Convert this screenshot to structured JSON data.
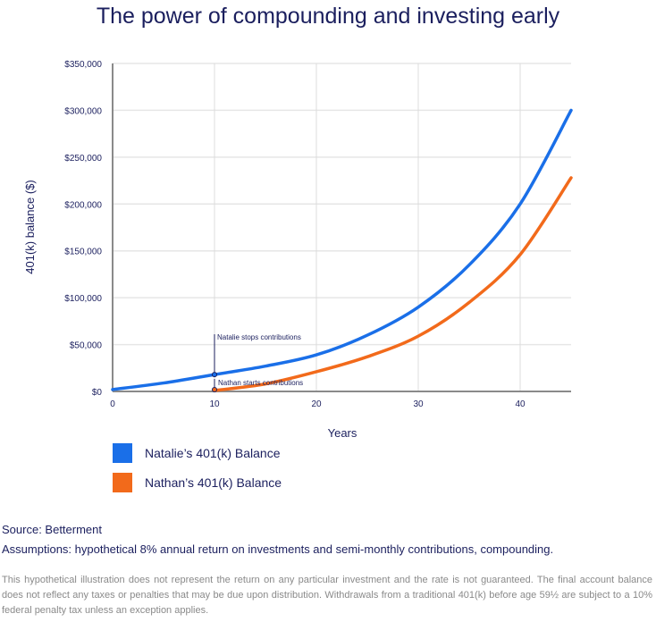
{
  "chart_data": {
    "type": "line",
    "title": "The power of compounding and investing early",
    "xlabel": "Years",
    "ylabel": "401(k) balance ($)",
    "xlim": [
      0,
      45
    ],
    "ylim": [
      0,
      350000
    ],
    "x_ticks": [
      "0",
      "10",
      "20",
      "30",
      "40"
    ],
    "y_ticks": [
      "$0",
      "$50,000",
      "$100,000",
      "$150,000",
      "$200,000",
      "$250,000",
      "$300,000",
      "$350,000"
    ],
    "grid": true,
    "legend_position": "bottom-left",
    "x": [
      0,
      5,
      10,
      15,
      20,
      25,
      30,
      35,
      40,
      45
    ],
    "series": [
      {
        "name": "Natalie’s 401(k) Balance",
        "color": "#1a6fe8",
        "values": [
          2000,
          9000,
          18000,
          27000,
          39000,
          60000,
          90000,
          135000,
          200000,
          300000
        ]
      },
      {
        "name": "Nathan’s 401(k) Balance",
        "color": "#f26a1b",
        "values": [
          null,
          null,
          1000,
          8000,
          21000,
          37000,
          59000,
          95000,
          146000,
          228000
        ]
      }
    ],
    "annotations": [
      {
        "text": "Natalie stops contributions",
        "x": 10,
        "y": 18000
      },
      {
        "text": "Nathan starts contributions",
        "x": 10,
        "y": 1000
      }
    ]
  },
  "footer": {
    "source": "Source: Betterment",
    "assumptions": "Assumptions: hypothetical 8% annual return on investments and semi-monthly contributions, compounding.",
    "disclaimer": "This hypothetical illustration does not represent the return on any particular investment and the rate is not guaranteed. The final account balance does not reflect any taxes or penalties that may be due upon distribution. Withdrawals from a traditional 401(k) before age 59½ are subject to a 10% federal penalty tax unless an exception applies."
  }
}
